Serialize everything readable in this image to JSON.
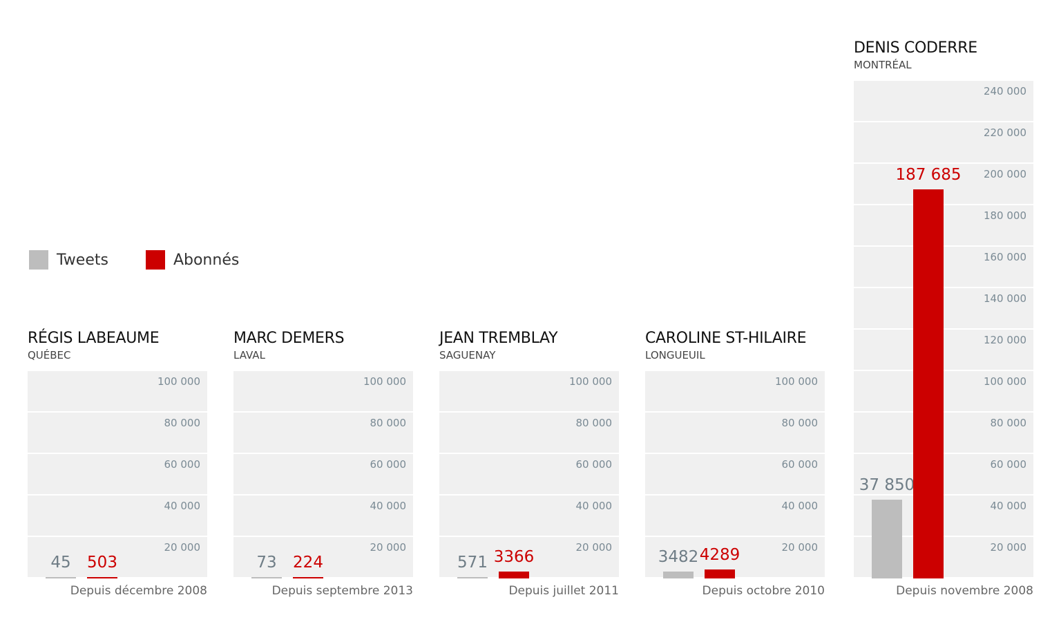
{
  "legend": [
    {
      "label": "Tweets",
      "color": "#bdbdbd"
    },
    {
      "label": "Abonnés",
      "color": "#cc0000"
    }
  ],
  "colors": {
    "tweets": "#bdbdbd",
    "abonnes": "#cc0000",
    "tweets_label": "#6f7d86",
    "abonnes_label": "#cc0000",
    "grid": "#f0f0f0"
  },
  "chart_data": [
    {
      "type": "bar",
      "title": "RÉGIS LABEAUME",
      "subtitle": "QUÉBEC",
      "categories": [
        "Tweets",
        "Abonnés"
      ],
      "values": [
        45,
        503
      ],
      "value_labels": [
        "45",
        "503"
      ],
      "ylim": [
        0,
        100000
      ],
      "ticks": [
        "100 000",
        "80 000",
        "60 000",
        "40 000",
        "20 000"
      ],
      "footnote": "Depuis décembre 2008"
    },
    {
      "type": "bar",
      "title": "MARC DEMERS",
      "subtitle": "LAVAL",
      "categories": [
        "Tweets",
        "Abonnés"
      ],
      "values": [
        73,
        224
      ],
      "value_labels": [
        "73",
        "224"
      ],
      "ylim": [
        0,
        100000
      ],
      "ticks": [
        "100 000",
        "80 000",
        "60 000",
        "40 000",
        "20 000"
      ],
      "footnote": "Depuis septembre 2013"
    },
    {
      "type": "bar",
      "title": "JEAN TREMBLAY",
      "subtitle": "SAGUENAY",
      "categories": [
        "Tweets",
        "Abonnés"
      ],
      "values": [
        571,
        3366
      ],
      "value_labels": [
        "571",
        "3366"
      ],
      "ylim": [
        0,
        100000
      ],
      "ticks": [
        "100 000",
        "80 000",
        "60 000",
        "40 000",
        "20 000"
      ],
      "footnote": "Depuis juillet 2011"
    },
    {
      "type": "bar",
      "title": "CAROLINE ST-HILAIRE",
      "subtitle": "LONGUEUIL",
      "categories": [
        "Tweets",
        "Abonnés"
      ],
      "values": [
        3482,
        4289
      ],
      "value_labels": [
        "3482",
        "4289"
      ],
      "ylim": [
        0,
        100000
      ],
      "ticks": [
        "100 000",
        "80 000",
        "60 000",
        "40 000",
        "20 000"
      ],
      "footnote": "Depuis octobre 2010"
    },
    {
      "type": "bar",
      "title": "DENIS CODERRE",
      "subtitle": "MONTRÉAL",
      "categories": [
        "Tweets",
        "Abonnés"
      ],
      "values": [
        37850,
        187685
      ],
      "value_labels": [
        "37 850",
        "187 685"
      ],
      "ylim": [
        0,
        240000
      ],
      "ticks": [
        "240 000",
        "220 000",
        "200 000",
        "180 000",
        "160 000",
        "140 000",
        "120 000",
        "100 000",
        "80 000",
        "60 000",
        "40 000",
        "20 000"
      ],
      "footnote": "Depuis novembre 2008"
    }
  ]
}
